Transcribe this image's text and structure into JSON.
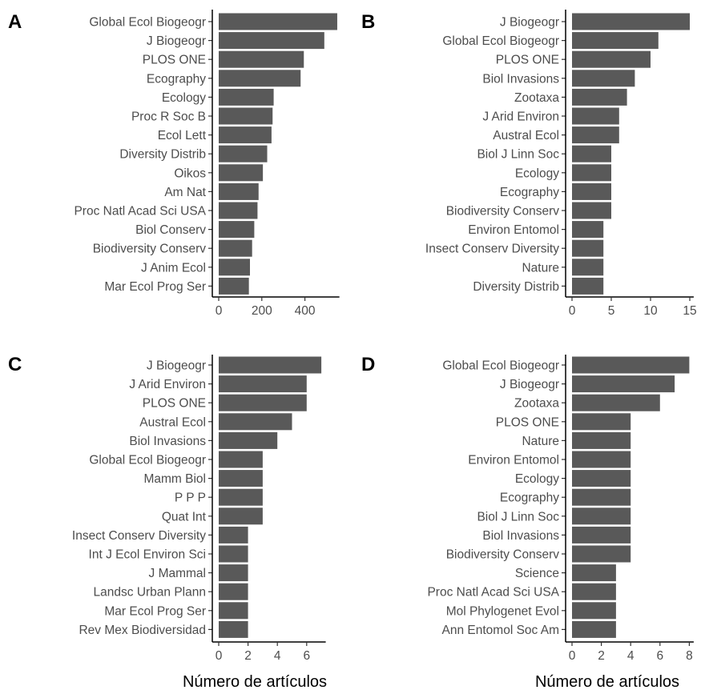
{
  "chart_data": [
    {
      "type": "bar",
      "orientation": "horizontal",
      "panel_label": "A",
      "categories": [
        "Global Ecol Biogeogr",
        "J Biogeogr",
        "PLOS ONE",
        "Ecography",
        "Ecology",
        "Proc R Soc B",
        "Ecol Lett",
        "Diversity Distrib",
        "Oikos",
        "Am Nat",
        "Proc Natl Acad Sci USA",
        "Biol Conserv",
        "Biodiversity Conserv",
        "J Anim Ecol",
        "Mar Ecol Prog Ser"
      ],
      "values": [
        550,
        490,
        395,
        380,
        255,
        250,
        245,
        225,
        205,
        185,
        180,
        165,
        155,
        145,
        140
      ],
      "xlim": [
        0,
        560
      ],
      "xticks": [
        0,
        200,
        400
      ],
      "xtick_labels": [
        "0",
        "200",
        "400"
      ],
      "xlabel": "",
      "bar_color": "#595959"
    },
    {
      "type": "bar",
      "orientation": "horizontal",
      "panel_label": "B",
      "categories": [
        "J Biogeogr",
        "Global Ecol Biogeogr",
        "PLOS ONE",
        "Biol Invasions",
        "Zootaxa",
        "J Arid Environ",
        "Austral Ecol",
        "Biol J Linn Soc",
        "Ecology",
        "Ecography",
        "Biodiversity Conserv",
        "Environ Entomol",
        "Insect Conserv Diversity",
        "Nature",
        "Diversity Distrib"
      ],
      "values": [
        15,
        11,
        10,
        8,
        7,
        6,
        6,
        5,
        5,
        5,
        5,
        4,
        4,
        4,
        4
      ],
      "xlim": [
        0,
        15.5
      ],
      "xticks": [
        0,
        5,
        10,
        15
      ],
      "xtick_labels": [
        "0",
        "5",
        "10",
        "15"
      ],
      "xlabel": "",
      "bar_color": "#595959"
    },
    {
      "type": "bar",
      "orientation": "horizontal",
      "panel_label": "C",
      "categories": [
        "J Biogeogr",
        "J Arid Environ",
        "PLOS ONE",
        "Austral Ecol",
        "Biol Invasions",
        "Global Ecol Biogeogr",
        "Mamm Biol",
        "P P P",
        "Quat Int",
        "Insect Conserv Diversity",
        "Int J Ecol Environ Sci",
        "J Mammal",
        "Landsc Urban Plann",
        "Mar Ecol Prog Ser",
        "Rev Mex Biodiversidad"
      ],
      "values": [
        7,
        6,
        6,
        5,
        4,
        3,
        3,
        3,
        3,
        2,
        2,
        2,
        2,
        2,
        2
      ],
      "xlim": [
        0,
        7.3
      ],
      "xticks": [
        0,
        2,
        4,
        6
      ],
      "xtick_labels": [
        "0",
        "2",
        "4",
        "6"
      ],
      "xlabel": "Número de artículos",
      "bar_color": "#595959"
    },
    {
      "type": "bar",
      "orientation": "horizontal",
      "panel_label": "D",
      "categories": [
        "Global Ecol Biogeogr",
        "J Biogeogr",
        "Zootaxa",
        "PLOS ONE",
        "Nature",
        "Environ Entomol",
        "Ecology",
        "Ecography",
        "Biol J Linn Soc",
        "Biol Invasions",
        "Biodiversity Conserv",
        "Science",
        "Proc Natl Acad Sci USA",
        "Mol Phylogenet Evol",
        "Ann Entomol Soc Am"
      ],
      "values": [
        8,
        7,
        6,
        4,
        4,
        4,
        4,
        4,
        4,
        4,
        4,
        3,
        3,
        3,
        3
      ],
      "xlim": [
        0,
        8.3
      ],
      "xticks": [
        0,
        2,
        4,
        6,
        8
      ],
      "xtick_labels": [
        "0",
        "2",
        "4",
        "6",
        "8"
      ],
      "xlabel": "Número de artículos",
      "bar_color": "#595959"
    }
  ]
}
